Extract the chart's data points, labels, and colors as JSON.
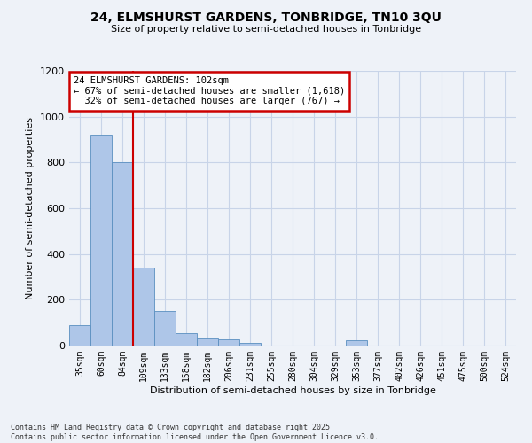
{
  "title_line1": "24, ELMSHURST GARDENS, TONBRIDGE, TN10 3QU",
  "title_line2": "Size of property relative to semi-detached houses in Tonbridge",
  "xlabel": "Distribution of semi-detached houses by size in Tonbridge",
  "ylabel": "Number of semi-detached properties",
  "bin_labels": [
    "35sqm",
    "60sqm",
    "84sqm",
    "109sqm",
    "133sqm",
    "158sqm",
    "182sqm",
    "206sqm",
    "231sqm",
    "255sqm",
    "280sqm",
    "304sqm",
    "329sqm",
    "353sqm",
    "377sqm",
    "402sqm",
    "426sqm",
    "451sqm",
    "475sqm",
    "500sqm",
    "524sqm"
  ],
  "bar_values": [
    90,
    920,
    800,
    340,
    150,
    55,
    30,
    28,
    13,
    0,
    0,
    0,
    0,
    22,
    0,
    0,
    0,
    0,
    0,
    0,
    0
  ],
  "bar_color": "#aec6e8",
  "bar_edge_color": "#5a8fc0",
  "grid_color": "#c8d4e8",
  "annotation_text": "24 ELMSHURST GARDENS: 102sqm\n← 67% of semi-detached houses are smaller (1,618)\n  32% of semi-detached houses are larger (767) →",
  "vline_pos": 2.5,
  "ylim": [
    0,
    1200
  ],
  "yticks": [
    0,
    200,
    400,
    600,
    800,
    1000,
    1200
  ],
  "annotation_box_color": "#ffffff",
  "annotation_box_edge": "#cc0000",
  "vline_color": "#cc0000",
  "footnote": "Contains HM Land Registry data © Crown copyright and database right 2025.\nContains public sector information licensed under the Open Government Licence v3.0.",
  "background_color": "#eef2f8"
}
